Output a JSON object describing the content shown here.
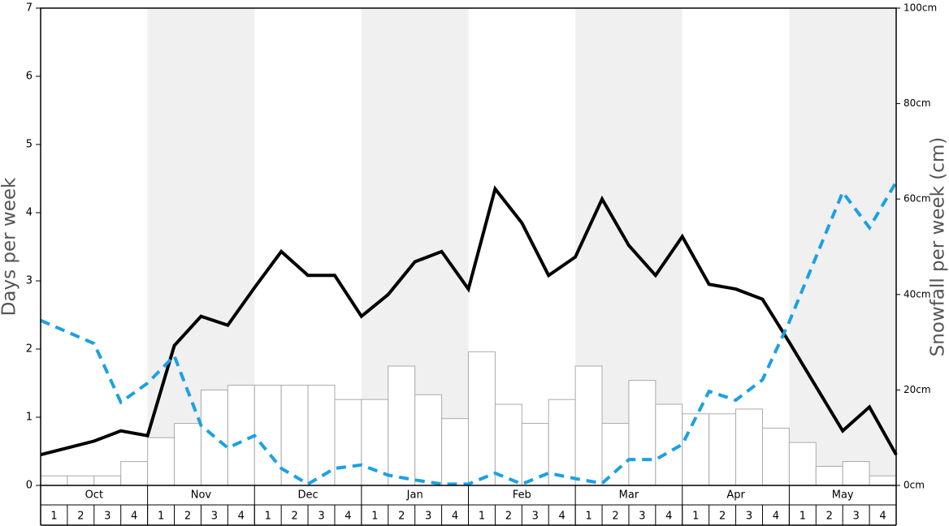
{
  "chart_data": {
    "type": "combo",
    "y_label": "Days per week",
    "y2_label": "Snowfall per week (cm)",
    "months": [
      "Oct",
      "Nov",
      "Dec",
      "Jan",
      "Feb",
      "Mar",
      "Apr",
      "May"
    ],
    "categories": [
      "1",
      "2",
      "3",
      "4",
      "1",
      "2",
      "3",
      "4",
      "1",
      "2",
      "3",
      "4",
      "1",
      "2",
      "3",
      "4",
      "1",
      "2",
      "3",
      "4",
      "1",
      "2",
      "3",
      "4",
      "1",
      "2",
      "3",
      "4",
      "1",
      "2",
      "3",
      "4"
    ],
    "x": [
      0,
      1,
      2,
      3,
      4,
      5,
      6,
      7,
      8,
      9,
      10,
      11,
      12,
      13,
      14,
      15,
      16,
      17,
      18,
      19,
      20,
      21,
      22,
      23,
      24,
      25,
      26,
      27,
      28,
      29,
      30,
      31,
      32
    ],
    "xlim": [
      0,
      32
    ],
    "ylim": [
      0,
      7
    ],
    "yticks": [
      0,
      1,
      2,
      3,
      4,
      5,
      6,
      7
    ],
    "y2lim": [
      0,
      100
    ],
    "y2ticks": [
      {
        "value": 0,
        "label": "0cm"
      },
      {
        "value": 20,
        "label": "20cm"
      },
      {
        "value": 40,
        "label": "40cm"
      },
      {
        "value": 60,
        "label": "60cm"
      },
      {
        "value": 80,
        "label": "80cm"
      },
      {
        "value": 100,
        "label": "100cm"
      }
    ],
    "shade_color": "#f0f0f0",
    "series": [
      {
        "type": "bar",
        "axis": "y2",
        "color": "#ffffff",
        "values": [
          2,
          2,
          2,
          5,
          10,
          13,
          20,
          21,
          21,
          21,
          21,
          18,
          18,
          25,
          19,
          14,
          28,
          17,
          13,
          18,
          25,
          13,
          22,
          17,
          15,
          15,
          16,
          12,
          9,
          4,
          5,
          2
        ]
      },
      {
        "type": "line",
        "color": "#000000",
        "values": [
          0.45,
          0.55,
          0.65,
          0.8,
          0.73,
          2.05,
          2.48,
          2.35,
          2.9,
          3.43,
          3.08,
          3.08,
          2.48,
          2.8,
          3.28,
          3.43,
          2.88,
          4.35,
          3.85,
          3.08,
          3.35,
          4.2,
          3.52,
          3.08,
          3.65,
          2.95,
          2.88,
          2.73,
          2.1,
          1.45,
          0.8,
          1.15,
          0.45
        ]
      },
      {
        "type": "line",
        "color": "#1ba1e2",
        "dash": true,
        "values": [
          2.42,
          2.25,
          2.08,
          1.22,
          1.5,
          1.9,
          0.88,
          0.55,
          0.73,
          0.25,
          0.02,
          0.25,
          0.3,
          0.15,
          0.08,
          0.02,
          0.02,
          0.18,
          0.02,
          0.18,
          0.1,
          0.03,
          0.38,
          0.38,
          0.6,
          1.38,
          1.25,
          1.55,
          2.4,
          3.35,
          4.3,
          3.78,
          4.45
        ]
      }
    ]
  }
}
